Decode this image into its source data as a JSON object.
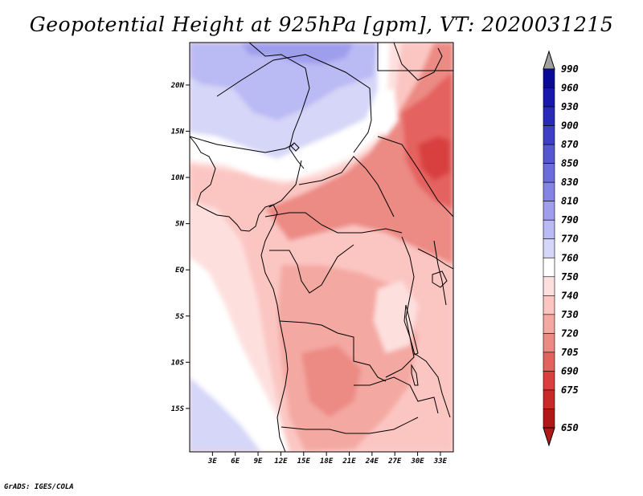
{
  "title": "Geopotential Height at 925hPa [gpm], VT: 2020031215",
  "credit": "GrADS: IGES/COLA",
  "map": {
    "lat_labels": [
      "20N",
      "15N",
      "10N",
      "5N",
      "EQ",
      "5S",
      "10S",
      "15S"
    ],
    "lon_labels": [
      "3E",
      "6E",
      "9E",
      "12E",
      "15E",
      "18E",
      "21E",
      "24E",
      "27E",
      "30E",
      "33E"
    ],
    "lat_values": [
      20,
      15,
      10,
      5,
      0,
      -5,
      -10,
      -15
    ],
    "lon_values": [
      3,
      6,
      9,
      12,
      15,
      18,
      21,
      24,
      27,
      30,
      33
    ],
    "lon_range": [
      0,
      34.7
    ],
    "lat_range": [
      -19.7,
      24.6
    ],
    "field_desc": "geopotential height shading",
    "regions": [
      {
        "name": "sahara-north-low-band",
        "level": "790"
      },
      {
        "name": "sahel-band",
        "level": "770"
      },
      {
        "name": "atlantic-west",
        "level": "760"
      },
      {
        "name": "central-africa",
        "level": "740"
      },
      {
        "name": "sudan-ethiopia",
        "level": "720"
      },
      {
        "name": "red-sea-core",
        "level": "705"
      },
      {
        "name": "south-atlantic",
        "level": "770"
      }
    ]
  },
  "colorbar": {
    "levels": [
      "990",
      "960",
      "930",
      "900",
      "870",
      "850",
      "830",
      "810",
      "790",
      "770",
      "760",
      "750",
      "740",
      "730",
      "720",
      "705",
      "690",
      "675",
      "650"
    ],
    "colors": [
      "#0a0a96",
      "#1818aa",
      "#2a2ab8",
      "#3e3ec6",
      "#5656d2",
      "#6c6cdc",
      "#8484e4",
      "#9e9eec",
      "#babaf4",
      "#d6d6f8",
      "#ffffff",
      "#fde0de",
      "#fbc6c2",
      "#f4a8a2",
      "#ec8a84",
      "#e4625e",
      "#d84040",
      "#c82a2a",
      "#b01818"
    ]
  }
}
